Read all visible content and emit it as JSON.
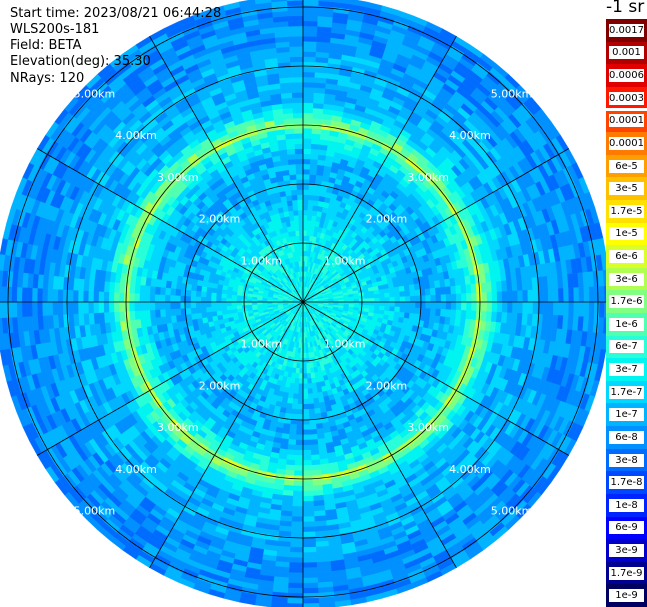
{
  "info": {
    "start_time": "Start time: 2023/08/21 06:44:28",
    "station": "WLS200s-181",
    "field": "Field: BETA",
    "elevation": "Elevation(deg): 35.30",
    "nrays": "NRays: 120"
  },
  "colorbar": {
    "units": "-1 sr",
    "levels": [
      {
        "label": "0.0017",
        "color": "#800000"
      },
      {
        "label": "0.001",
        "color": "#b00000"
      },
      {
        "label": "0.0006",
        "color": "#e00000"
      },
      {
        "label": "0.0003",
        "color": "#ff1800"
      },
      {
        "label": "0.00017",
        "color": "#ff4400"
      },
      {
        "label": "0.0001",
        "color": "#ff7a00"
      },
      {
        "label": "6e-5",
        "color": "#ff9e00"
      },
      {
        "label": "3e-5",
        "color": "#ffc000"
      },
      {
        "label": "1.7e-5",
        "color": "#ffe000"
      },
      {
        "label": "1e-5",
        "color": "#ffff00"
      },
      {
        "label": "6e-6",
        "color": "#d8ff28"
      },
      {
        "label": "3e-6",
        "color": "#b0ff50"
      },
      {
        "label": "1.7e-6",
        "color": "#80ff80"
      },
      {
        "label": "1e-6",
        "color": "#50ffb0"
      },
      {
        "label": "6e-7",
        "color": "#28ffd8"
      },
      {
        "label": "3e-7",
        "color": "#00f4f0"
      },
      {
        "label": "1.7e-7",
        "color": "#00d8ff"
      },
      {
        "label": "1e-7",
        "color": "#00b4ff"
      },
      {
        "label": "6e-8",
        "color": "#0090ff"
      },
      {
        "label": "3e-8",
        "color": "#006cff"
      },
      {
        "label": "1.7e-8",
        "color": "#0048ff"
      },
      {
        "label": "1e-8",
        "color": "#0024ff"
      },
      {
        "label": "6e-9",
        "color": "#0000ff"
      },
      {
        "label": "3e-9",
        "color": "#0000c8"
      },
      {
        "label": "1.7e-9",
        "color": "#000090"
      },
      {
        "label": "1e-9",
        "color": "#000060"
      }
    ]
  },
  "chart_data": {
    "type": "heatmap",
    "projection": "polar",
    "field": "BETA",
    "elevation_deg": 35.3,
    "nrays": 120,
    "range_rings_km": [
      1.0,
      2.0,
      3.0,
      4.0,
      5.0
    ],
    "ring_labels": [
      "1.00km",
      "2.00km",
      "3.00km",
      "4.00km",
      "5.00km"
    ],
    "max_range_km": 5.2,
    "radial_spokes_deg": [
      0,
      30,
      60,
      90,
      120,
      150,
      180,
      210,
      240,
      270,
      300,
      330
    ],
    "radial_profile_level_index": [
      [
        0.0,
        15
      ],
      [
        0.5,
        15
      ],
      [
        1.0,
        15
      ],
      [
        1.5,
        16
      ],
      [
        2.0,
        17
      ],
      [
        2.5,
        17
      ],
      [
        2.9,
        14
      ],
      [
        3.0,
        11
      ],
      [
        3.1,
        13
      ],
      [
        3.3,
        16
      ],
      [
        3.5,
        17
      ],
      [
        4.0,
        17
      ],
      [
        4.5,
        18
      ],
      [
        5.0,
        18
      ],
      [
        5.2,
        18
      ]
    ],
    "colorbar_range": [
      1e-09,
      0.0017
    ],
    "colorbar_scale": "log"
  }
}
